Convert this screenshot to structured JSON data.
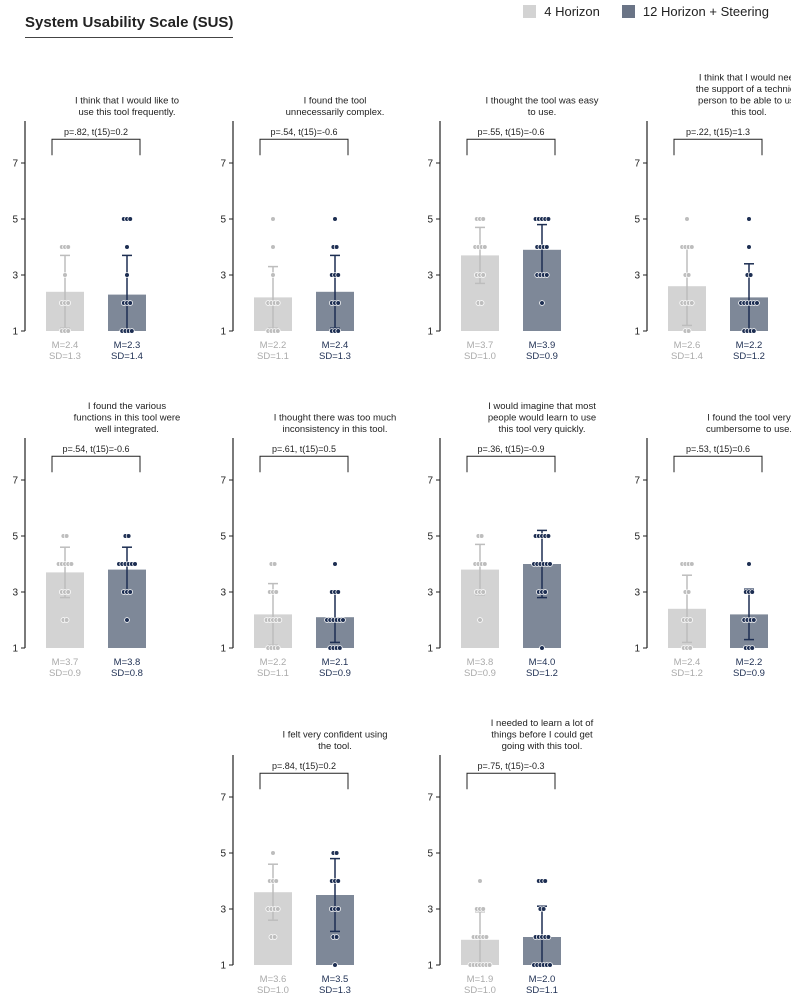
{
  "title": "System Usability Scale (SUS)",
  "legend": [
    {
      "label": "4 Horizon",
      "color": "#d3d3d3"
    },
    {
      "label": "12 Horizon + Steering",
      "color": "#7e8898"
    }
  ],
  "colors": {
    "light_text": "#aaaaaa",
    "dark_text": "#1d2e52",
    "light_bar": "#d3d3d3",
    "dark_bar": "#7e8898",
    "dark_err": "#1d2e52",
    "light_err": "#bdbdbd"
  },
  "chart_data": [
    {
      "type": "bar",
      "title": [
        "I think that I would like to",
        "use this tool frequently."
      ],
      "ylim": [
        1,
        8.5
      ],
      "yticks": [
        1,
        3,
        5,
        7
      ],
      "test": "p=.82, t(15)=0.2",
      "series": [
        {
          "name": "4 Horizon",
          "mean": 2.4,
          "sd": 1.3,
          "m_label": "M=2.4",
          "sd_label": "SD=1.3",
          "points": [
            [
              1,
              3
            ],
            [
              2,
              3
            ],
            [
              3,
              1
            ],
            [
              4,
              3
            ]
          ]
        },
        {
          "name": "12 Horizon + Steering",
          "mean": 2.3,
          "sd": 1.4,
          "m_label": "M=2.3",
          "sd_label": "SD=1.4",
          "points": [
            [
              1,
              4
            ],
            [
              2,
              3
            ],
            [
              3,
              1
            ],
            [
              4,
              1
            ],
            [
              5,
              3
            ]
          ]
        }
      ]
    },
    {
      "type": "bar",
      "title": [
        "I found the tool",
        "unnecessarily complex."
      ],
      "ylim": [
        1,
        8.5
      ],
      "yticks": [
        1,
        3,
        5,
        7
      ],
      "test": "p=.54, t(15)=-0.6",
      "series": [
        {
          "name": "4 Horizon",
          "mean": 2.2,
          "sd": 1.1,
          "m_label": "M=2.2",
          "sd_label": "SD=1.1",
          "points": [
            [
              1,
              4
            ],
            [
              2,
              4
            ],
            [
              3,
              1
            ],
            [
              4,
              1
            ],
            [
              5,
              1
            ]
          ]
        },
        {
          "name": "12 Horizon + Steering",
          "mean": 2.4,
          "sd": 1.3,
          "m_label": "M=2.4",
          "sd_label": "SD=1.3",
          "points": [
            [
              1,
              3
            ],
            [
              2,
              3
            ],
            [
              3,
              3
            ],
            [
              4,
              2
            ],
            [
              5,
              1
            ]
          ]
        }
      ]
    },
    {
      "type": "bar",
      "title": [
        "I thought the tool was easy",
        "to use."
      ],
      "ylim": [
        1,
        8.5
      ],
      "yticks": [
        1,
        3,
        5,
        7
      ],
      "test": "p=.55, t(15)=-0.6",
      "series": [
        {
          "name": "4 Horizon",
          "mean": 3.7,
          "sd": 1.0,
          "m_label": "M=3.7",
          "sd_label": "SD=1.0",
          "points": [
            [
              2,
              2
            ],
            [
              3,
              3
            ],
            [
              4,
              4
            ],
            [
              5,
              3
            ]
          ]
        },
        {
          "name": "12 Horizon + Steering",
          "mean": 3.9,
          "sd": 0.9,
          "m_label": "M=3.9",
          "sd_label": "SD=0.9",
          "points": [
            [
              2,
              1
            ],
            [
              3,
              4
            ],
            [
              4,
              4
            ],
            [
              5,
              5
            ]
          ]
        }
      ]
    },
    {
      "type": "bar",
      "title": [
        "I think that I would need",
        "the support of a technical",
        "person to be able to use",
        "this tool."
      ],
      "ylim": [
        1,
        8.5
      ],
      "yticks": [
        1,
        3,
        5,
        7
      ],
      "test": "p=.22, t(15)=1.3",
      "series": [
        {
          "name": "4 Horizon",
          "mean": 2.6,
          "sd": 1.4,
          "m_label": "M=2.6",
          "sd_label": "SD=1.4",
          "points": [
            [
              1,
              2
            ],
            [
              2,
              4
            ],
            [
              3,
              2
            ],
            [
              4,
              4
            ],
            [
              5,
              1
            ]
          ]
        },
        {
          "name": "12 Horizon + Steering",
          "mean": 2.2,
          "sd": 1.2,
          "m_label": "M=2.2",
          "sd_label": "SD=1.2",
          "points": [
            [
              1,
              4
            ],
            [
              2,
              6
            ],
            [
              3,
              2
            ],
            [
              4,
              1
            ],
            [
              5,
              1
            ]
          ]
        }
      ]
    },
    {
      "type": "bar",
      "title": [
        "I found the various",
        "functions in this tool were",
        "well integrated."
      ],
      "ylim": [
        1,
        8.5
      ],
      "yticks": [
        1,
        3,
        5,
        7
      ],
      "test": "p=.54, t(15)=-0.6",
      "series": [
        {
          "name": "4 Horizon",
          "mean": 3.7,
          "sd": 0.9,
          "m_label": "M=3.7",
          "sd_label": "SD=0.9",
          "points": [
            [
              2,
              2
            ],
            [
              3,
              3
            ],
            [
              4,
              5
            ],
            [
              5,
              2
            ]
          ]
        },
        {
          "name": "12 Horizon + Steering",
          "mean": 3.8,
          "sd": 0.8,
          "m_label": "M=3.8",
          "sd_label": "SD=0.8",
          "points": [
            [
              2,
              1
            ],
            [
              3,
              3
            ],
            [
              4,
              6
            ],
            [
              5,
              2
            ]
          ]
        }
      ]
    },
    {
      "type": "bar",
      "title": [
        "I thought there was too much",
        "inconsistency in this tool."
      ],
      "ylim": [
        1,
        8.5
      ],
      "yticks": [
        1,
        3,
        5,
        7
      ],
      "test": "p=.61, t(15)=0.5",
      "series": [
        {
          "name": "4 Horizon",
          "mean": 2.2,
          "sd": 1.1,
          "m_label": "M=2.2",
          "sd_label": "SD=1.1",
          "points": [
            [
              1,
              4
            ],
            [
              2,
              5
            ],
            [
              3,
              3
            ],
            [
              4,
              2
            ]
          ]
        },
        {
          "name": "12 Horizon + Steering",
          "mean": 2.1,
          "sd": 0.9,
          "m_label": "M=2.1",
          "sd_label": "SD=0.9",
          "points": [
            [
              1,
              4
            ],
            [
              2,
              6
            ],
            [
              3,
              3
            ],
            [
              4,
              1
            ]
          ]
        }
      ]
    },
    {
      "type": "bar",
      "title": [
        "I would imagine that most",
        "people would learn to use",
        "this tool very quickly."
      ],
      "ylim": [
        1,
        8.5
      ],
      "yticks": [
        1,
        3,
        5,
        7
      ],
      "test": "p=.36, t(15)=-0.9",
      "series": [
        {
          "name": "4 Horizon",
          "mean": 3.8,
          "sd": 0.9,
          "m_label": "M=3.8",
          "sd_label": "SD=0.9",
          "points": [
            [
              2,
              1
            ],
            [
              3,
              3
            ],
            [
              4,
              4
            ],
            [
              5,
              2
            ]
          ]
        },
        {
          "name": "12 Horizon + Steering",
          "mean": 4.0,
          "sd": 1.2,
          "m_label": "M=4.0",
          "sd_label": "SD=1.2",
          "points": [
            [
              1,
              1
            ],
            [
              3,
              3
            ],
            [
              4,
              6
            ],
            [
              5,
              5
            ]
          ]
        }
      ]
    },
    {
      "type": "bar",
      "title": [
        "I found the tool very",
        "cumbersome to use."
      ],
      "ylim": [
        1,
        8.5
      ],
      "yticks": [
        1,
        3,
        5,
        7
      ],
      "test": "p=.53, t(15)=0.6",
      "series": [
        {
          "name": "4 Horizon",
          "mean": 2.4,
          "sd": 1.2,
          "m_label": "M=2.4",
          "sd_label": "SD=1.2",
          "points": [
            [
              1,
              3
            ],
            [
              2,
              3
            ],
            [
              3,
              2
            ],
            [
              4,
              4
            ]
          ]
        },
        {
          "name": "12 Horizon + Steering",
          "mean": 2.2,
          "sd": 0.9,
          "m_label": "M=2.2",
          "sd_label": "SD=0.9",
          "points": [
            [
              1,
              3
            ],
            [
              2,
              4
            ],
            [
              3,
              3
            ],
            [
              4,
              1
            ]
          ]
        }
      ]
    },
    {
      "type": "bar",
      "title": [
        "I felt very confident using",
        "the tool."
      ],
      "ylim": [
        1,
        8.5
      ],
      "yticks": [
        1,
        3,
        5,
        7
      ],
      "test": "p=.84, t(15)=0.2",
      "series": [
        {
          "name": "4 Horizon",
          "mean": 3.6,
          "sd": 1.0,
          "m_label": "M=3.6",
          "sd_label": "SD=1.0",
          "points": [
            [
              2,
              2
            ],
            [
              3,
              4
            ],
            [
              4,
              3
            ],
            [
              5,
              1
            ]
          ]
        },
        {
          "name": "12 Horizon + Steering",
          "mean": 3.5,
          "sd": 1.3,
          "m_label": "M=3.5",
          "sd_label": "SD=1.3",
          "points": [
            [
              1,
              1
            ],
            [
              2,
              2
            ],
            [
              3,
              3
            ],
            [
              4,
              3
            ],
            [
              5,
              2
            ]
          ]
        }
      ]
    },
    {
      "type": "bar",
      "title": [
        "I needed to learn a lot of",
        "things before I could get",
        "going with this tool."
      ],
      "ylim": [
        1,
        8.5
      ],
      "yticks": [
        1,
        3,
        5,
        7
      ],
      "test": "p=.75, t(15)=-0.3",
      "series": [
        {
          "name": "4 Horizon",
          "mean": 1.9,
          "sd": 1.0,
          "m_label": "M=1.9",
          "sd_label": "SD=1.0",
          "points": [
            [
              1,
              7
            ],
            [
              2,
              5
            ],
            [
              3,
              3
            ],
            [
              4,
              1
            ]
          ]
        },
        {
          "name": "12 Horizon + Steering",
          "mean": 2.0,
          "sd": 1.1,
          "m_label": "M=2.0",
          "sd_label": "SD=1.1",
          "points": [
            [
              1,
              6
            ],
            [
              2,
              5
            ],
            [
              3,
              2
            ],
            [
              4,
              3
            ]
          ]
        }
      ]
    }
  ]
}
